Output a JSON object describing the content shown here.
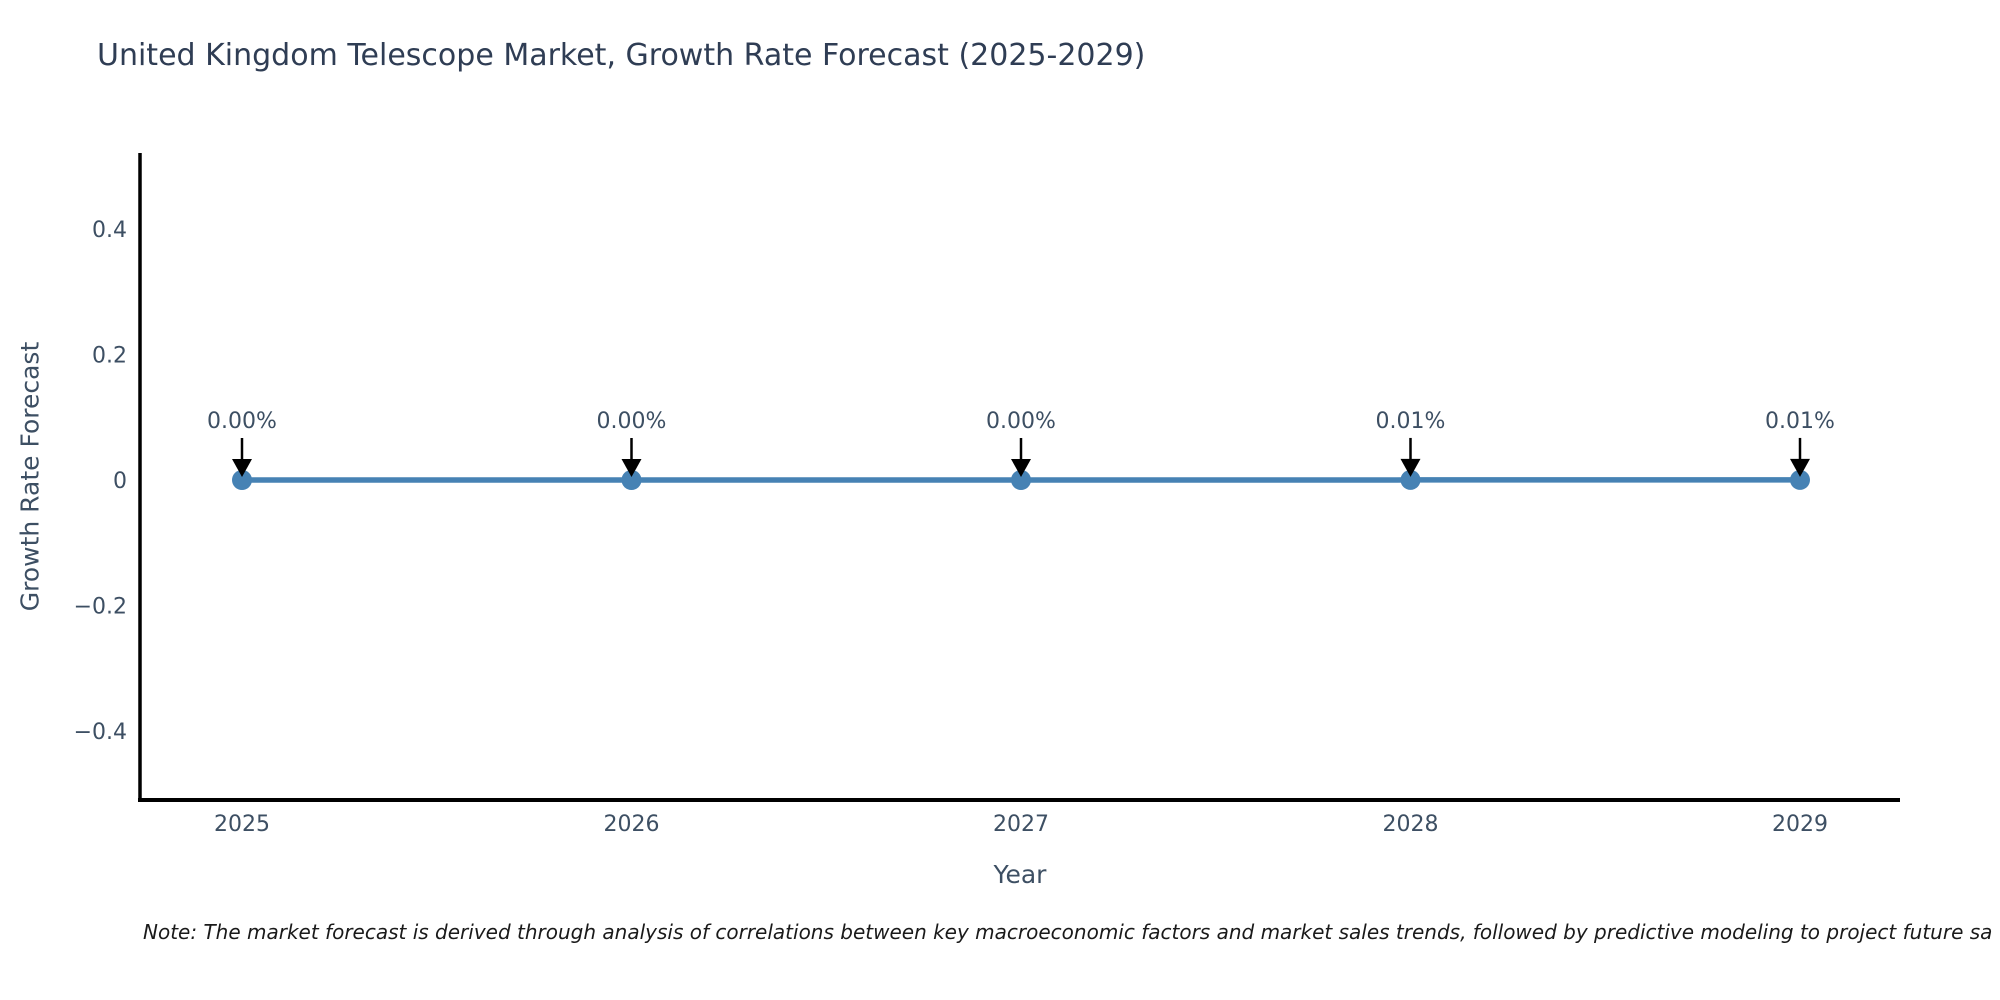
{
  "page": {
    "background": "#ffffff"
  },
  "chart_data": {
    "type": "line",
    "title": "United Kingdom Telescope Market, Growth Rate Forecast (2025-2029)",
    "xlabel": "Year",
    "ylabel": "Growth Rate Forecast",
    "categories": [
      "2025",
      "2026",
      "2027",
      "2028",
      "2029"
    ],
    "series": [
      {
        "name": "Growth Rate Forecast",
        "unit": "%",
        "values": [
          0.0,
          0.0,
          0.0,
          0.01,
          0.01
        ]
      }
    ],
    "point_labels": [
      "0.00%",
      "0.00%",
      "0.00%",
      "0.01%",
      "0.01%"
    ],
    "yticks": [
      {
        "value": 0.4,
        "label": "0.4"
      },
      {
        "value": 0.2,
        "label": "0.2"
      },
      {
        "value": 0,
        "label": "0"
      },
      {
        "value": -0.2,
        "label": "−0.2"
      },
      {
        "value": -0.4,
        "label": "−0.4"
      }
    ],
    "ylim": [
      -0.52,
      0.52
    ],
    "grid": false,
    "legend_position": "none",
    "annotation_style": "arrow-down",
    "colors": {
      "line": "#4682b4",
      "marker": "#4682b4",
      "arrow": "#000000",
      "axis": "#000000",
      "title_text": "#2f3d54",
      "tick_text": "#3d4f63",
      "annotation_text": "#3d4f63",
      "note_text": "#1a1a1a"
    }
  },
  "note": {
    "text": "Note: The market forecast is derived through analysis of correlations between key macroeconomic factors and market sales trends, followed by predictive modeling to project future sa"
  }
}
